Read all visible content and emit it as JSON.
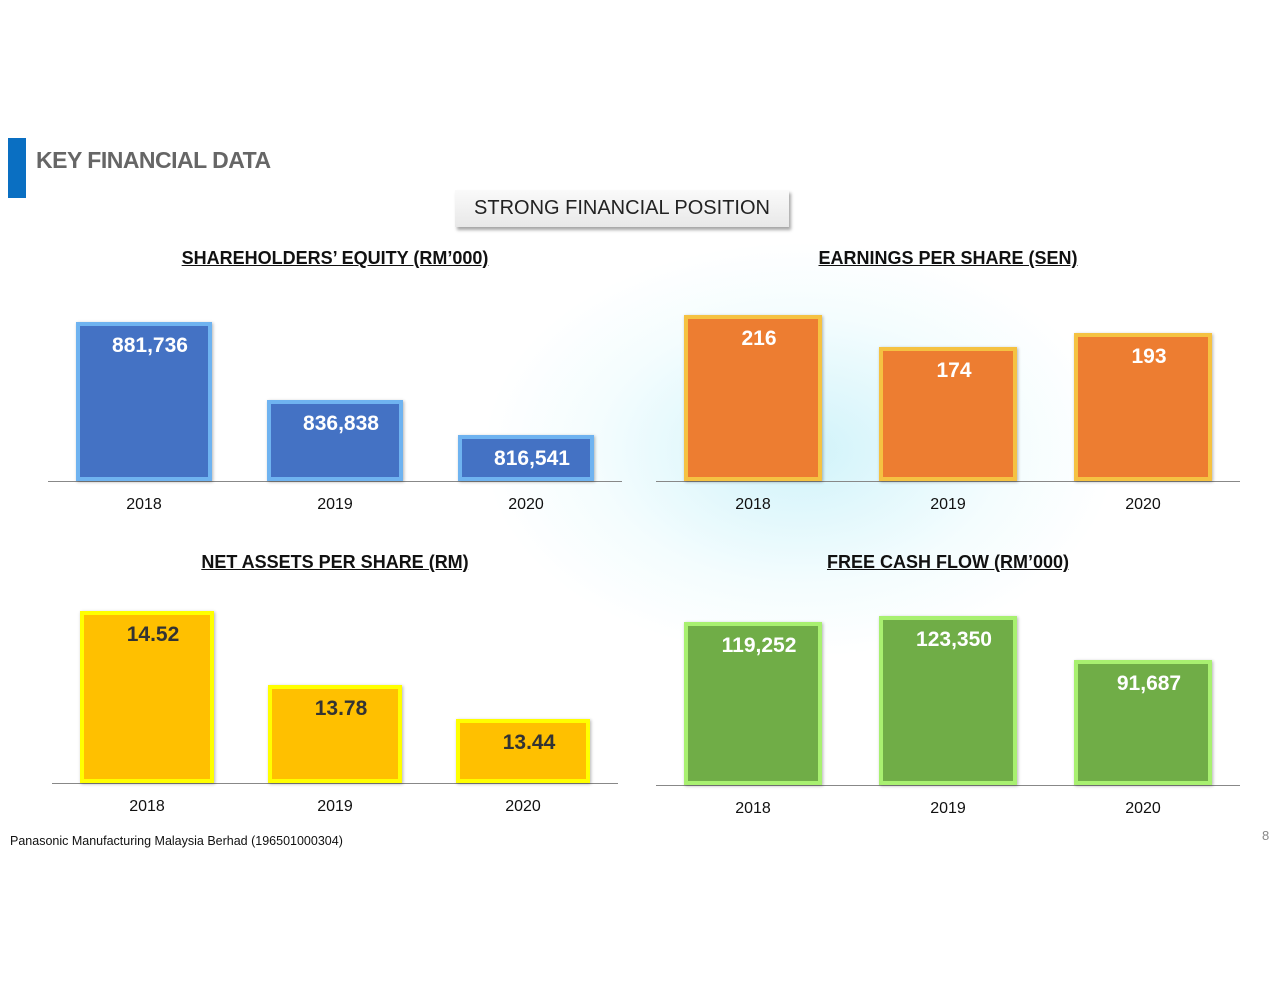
{
  "header": {
    "title": "KEY FINANCIAL DATA",
    "banner": "STRONG FINANCIAL POSITION"
  },
  "footer": {
    "company": "Panasonic Manufacturing Malaysia Berhad (196501000304)",
    "page_number": "8"
  },
  "chart_data": [
    {
      "type": "bar",
      "title": "SHAREHOLDERS’ EQUITY (RM’000)",
      "categories": [
        "2018",
        "2019",
        "2020"
      ],
      "values": [
        881736,
        836838,
        816541
      ],
      "labels": [
        "881,736",
        "836,838",
        "816,541"
      ],
      "ylim": [
        790000,
        885000
      ],
      "color": "#4472C4",
      "border": "#6FB3F0",
      "label_color": "#FFFFFF",
      "xlabel": "",
      "ylabel": ""
    },
    {
      "type": "bar",
      "title": "EARNINGS PER SHARE (SEN)",
      "categories": [
        "2018",
        "2019",
        "2020"
      ],
      "values": [
        216,
        174,
        193
      ],
      "labels": [
        "216",
        "174",
        "193"
      ],
      "ylim": [
        0,
        220
      ],
      "color": "#ED7D31",
      "border": "#F5C242",
      "label_color": "#FFFFFF",
      "xlabel": "",
      "ylabel": ""
    },
    {
      "type": "bar",
      "title": "NET ASSETS PER SHARE (RM)",
      "categories": [
        "2018",
        "2019",
        "2020"
      ],
      "values": [
        14.52,
        13.78,
        13.44
      ],
      "labels": [
        "14.52",
        "13.78",
        "13.44"
      ],
      "ylim": [
        12.8,
        14.55
      ],
      "color": "#FFC000",
      "border": "#FFFF00",
      "label_color": "#333333",
      "xlabel": "",
      "ylabel": ""
    },
    {
      "type": "bar",
      "title": "FREE CASH FLOW (RM’000)",
      "categories": [
        "2018",
        "2019",
        "2020"
      ],
      "values": [
        119252,
        123350,
        91687
      ],
      "labels": [
        "119,252",
        "123,350",
        "91,687"
      ],
      "ylim": [
        0,
        125000
      ],
      "color": "#70AD47",
      "border": "#A8F070",
      "label_color": "#FFFFFF",
      "xlabel": "",
      "ylabel": ""
    }
  ]
}
